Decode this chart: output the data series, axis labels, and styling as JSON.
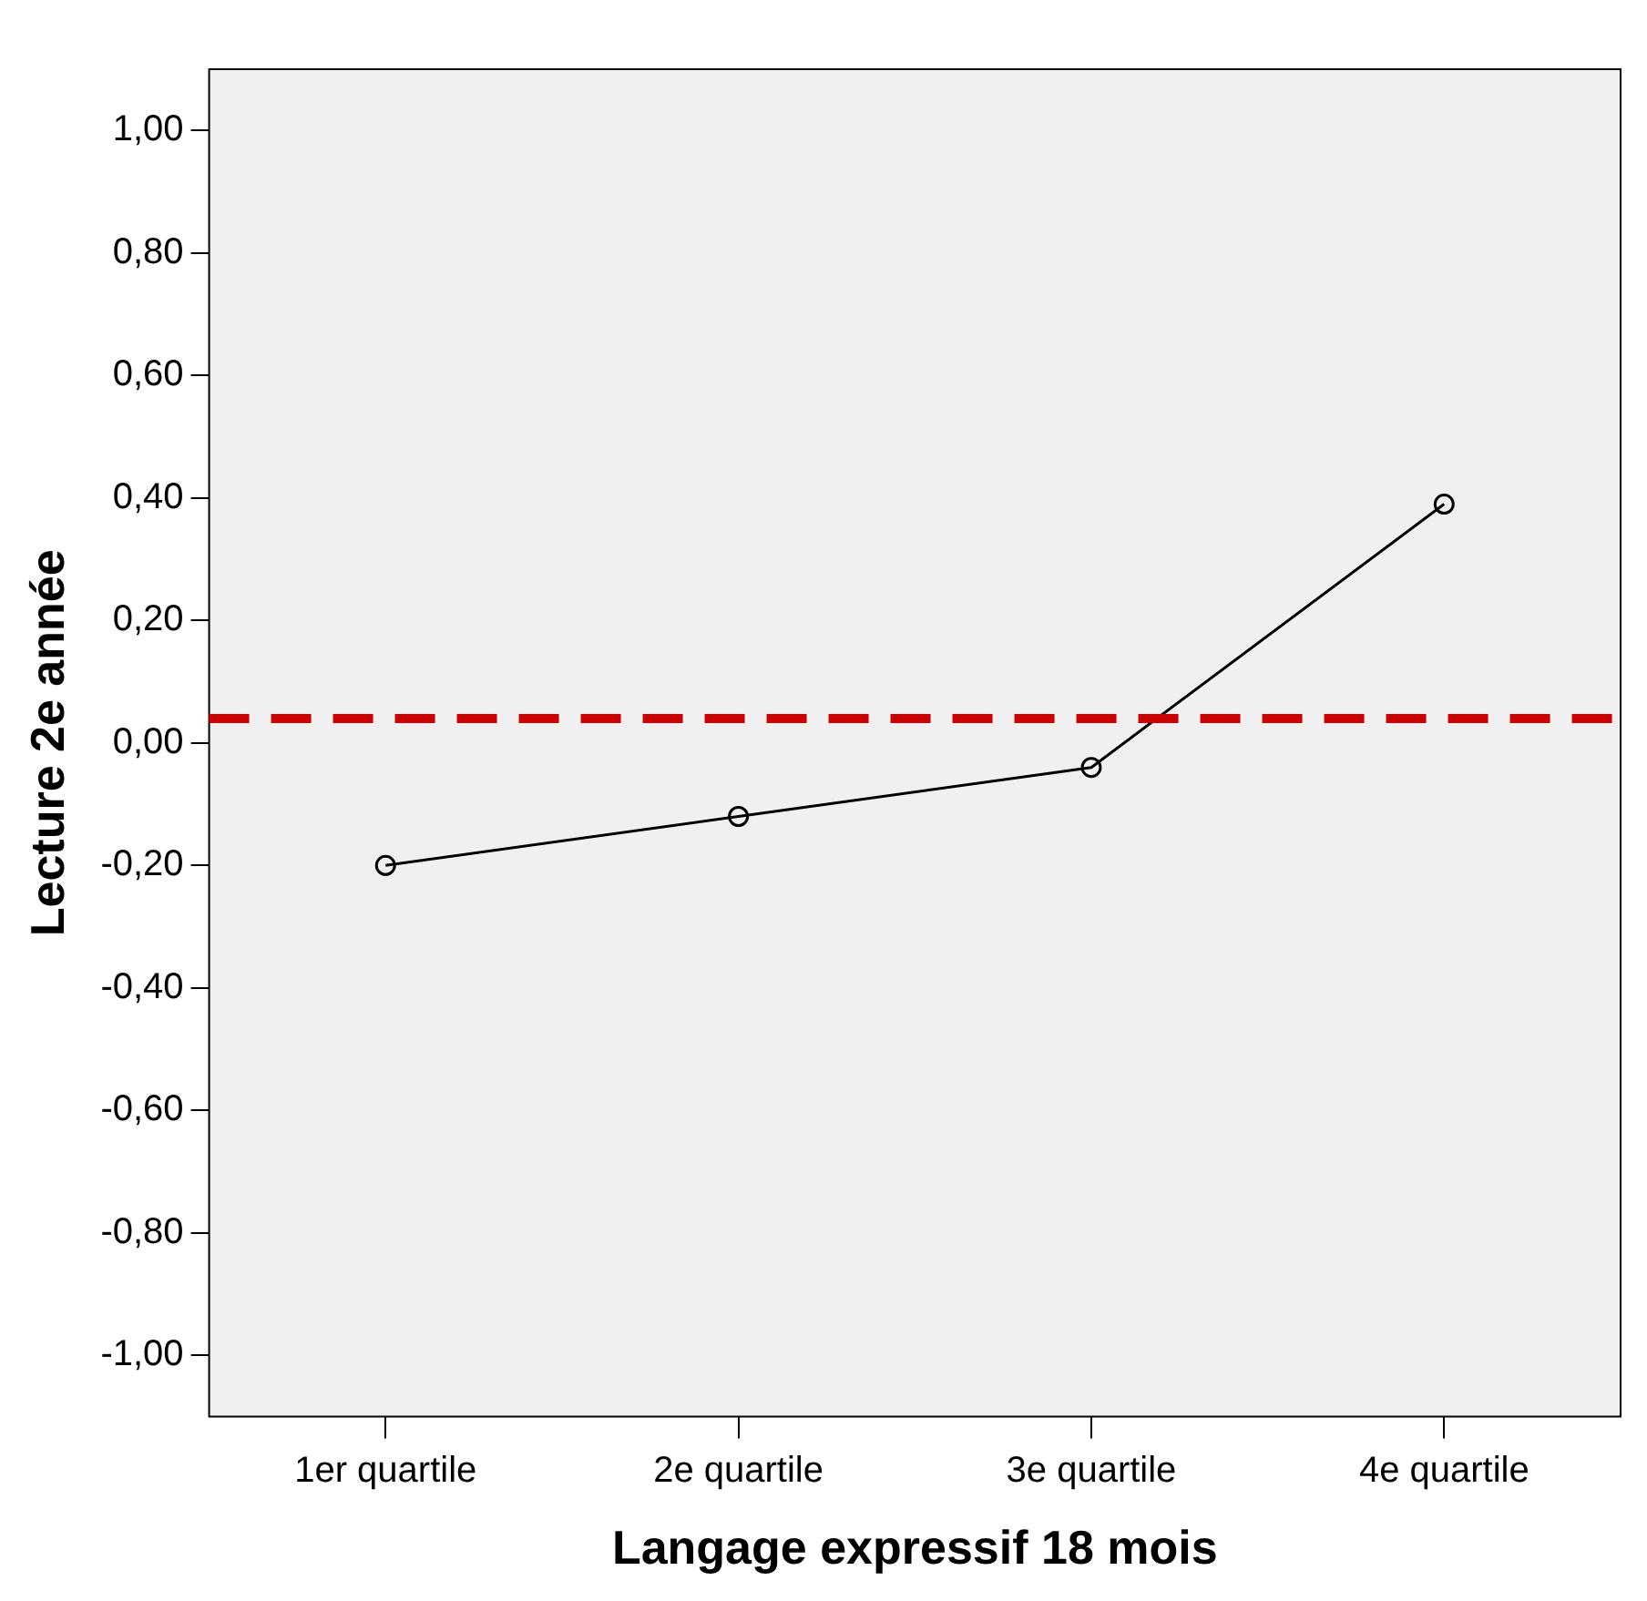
{
  "chart_data": {
    "type": "line",
    "xlabel": "Langage expressif 18 mois",
    "ylabel": "Lecture 2e année",
    "categories": [
      "1er quartile",
      "2e quartile",
      "3e quartile",
      "4e quartile"
    ],
    "series": [
      {
        "color": "#000000",
        "values": [
          -0.2,
          -0.12,
          -0.04,
          0.39
        ]
      }
    ],
    "ylim": [
      -1.1,
      1.1
    ],
    "yticks": [
      {
        "value": -1,
        "label": "-1,00"
      },
      {
        "value": -0.8,
        "label": "-0,80"
      },
      {
        "value": -0.6,
        "label": "-0,60"
      },
      {
        "value": -0.4,
        "label": "-0,40"
      },
      {
        "value": -0.2,
        "label": "-0,20"
      },
      {
        "value": 0,
        "label": "0,00"
      },
      {
        "value": 0.2,
        "label": "0,20"
      },
      {
        "value": 0.4,
        "label": "0,40"
      },
      {
        "value": 0.6,
        "label": "0,60"
      },
      {
        "value": 0.8,
        "label": "0,80"
      },
      {
        "value": 1,
        "label": "1,00"
      }
    ],
    "ref_lines": [
      {
        "axis": "y",
        "value": 0.04,
        "color": "#cc0000",
        "line_style": "dashed"
      }
    ],
    "marker": "circle",
    "line_style": "solid",
    "grid": false,
    "legend": false
  }
}
